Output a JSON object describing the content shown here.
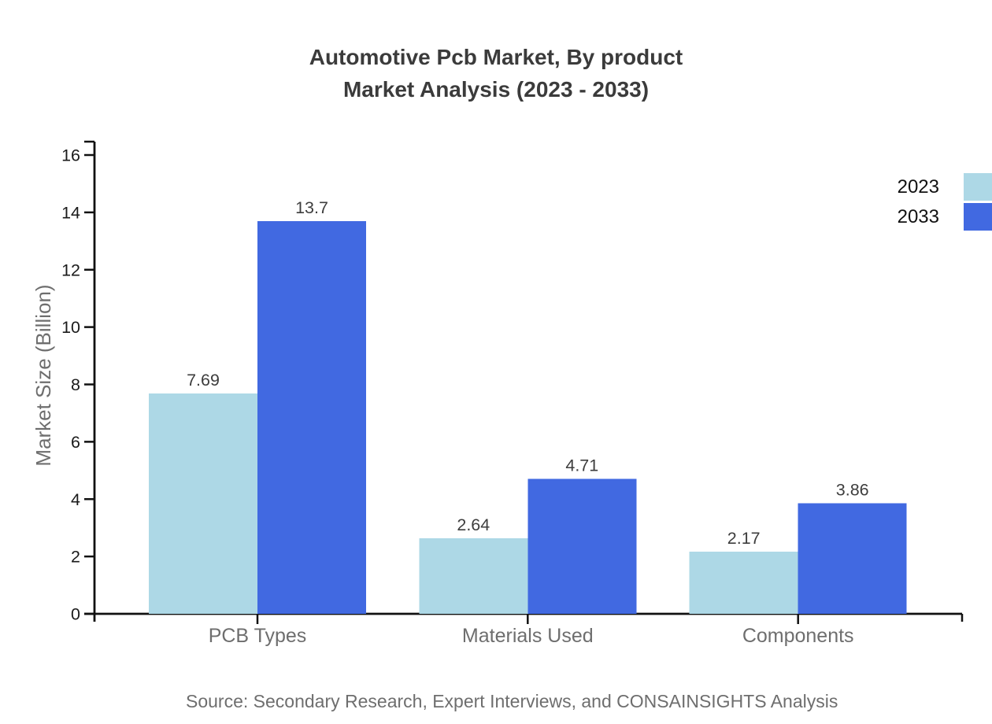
{
  "chart_data": {
    "type": "bar",
    "title_line1": "Automotive Pcb Market, By product",
    "title_line2": "Market Analysis (2023 - 2033)",
    "ylabel": "Market Size (Billion)",
    "xlabel": "",
    "categories": [
      "PCB Types",
      "Materials Used",
      "Components"
    ],
    "series": [
      {
        "name": "2023",
        "color": "#add8e6",
        "values": [
          7.69,
          2.64,
          2.17
        ],
        "labels": [
          "7.69",
          "2.64",
          "2.17"
        ]
      },
      {
        "name": "2033",
        "color": "#4169e1",
        "values": [
          13.7,
          4.71,
          3.86
        ],
        "labels": [
          "13.7",
          "4.71",
          "3.86"
        ]
      }
    ],
    "ylim": [
      0,
      16
    ],
    "yticks": [
      0,
      2,
      4,
      6,
      8,
      10,
      12,
      14,
      16
    ],
    "grid": false,
    "legend_position": "top-right",
    "source": "Source: Secondary Research, Expert Interviews, and CONSAINSIGHTS Analysis"
  },
  "colors": {
    "title": "#3b3b3b",
    "axis": "#111111",
    "tick_label": "#1a1a1a",
    "category_label": "#6e6e6e",
    "value_label": "#3d3d3d",
    "series_2023": "#add8e6",
    "series_2033": "#4169e1"
  }
}
